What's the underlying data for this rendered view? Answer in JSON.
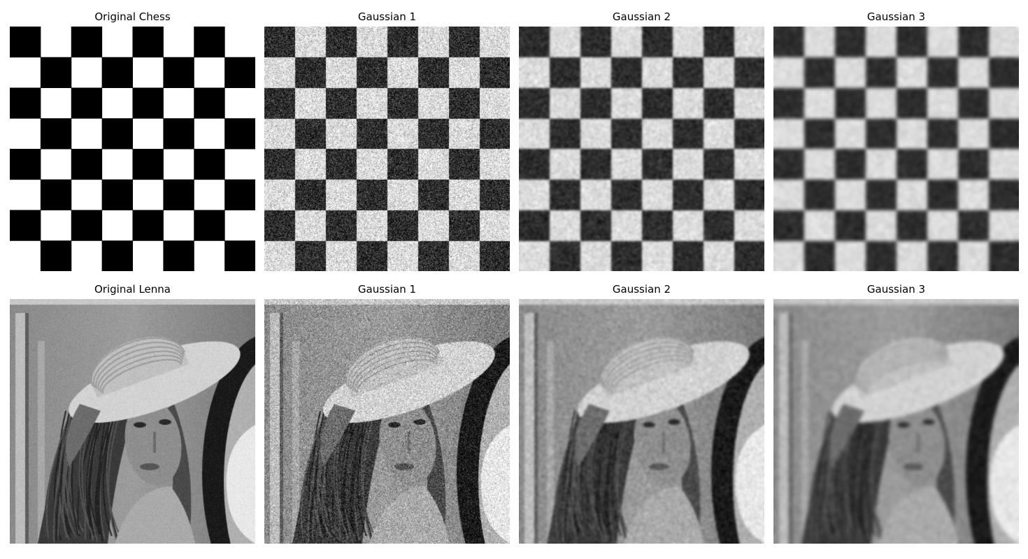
{
  "figure": {
    "rows": [
      {
        "source": "chess",
        "panels": [
          {
            "title": "Original Chess",
            "variant": "original",
            "blur_level": 0,
            "noise_level": 0
          },
          {
            "title": "Gaussian 1",
            "variant": "gaussian",
            "blur_level": 1,
            "noise_level": 1
          },
          {
            "title": "Gaussian 2",
            "variant": "gaussian",
            "blur_level": 2,
            "noise_level": 1
          },
          {
            "title": "Gaussian 3",
            "variant": "gaussian",
            "blur_level": 3,
            "noise_level": 1
          }
        ]
      },
      {
        "source": "portrait",
        "panels": [
          {
            "title": "Original Lenna",
            "variant": "original",
            "blur_level": 0,
            "noise_level": 0
          },
          {
            "title": "Gaussian 1",
            "variant": "gaussian",
            "blur_level": 1,
            "noise_level": 1
          },
          {
            "title": "Gaussian 2",
            "variant": "gaussian",
            "blur_level": 2,
            "noise_level": 1
          },
          {
            "title": "Gaussian 3",
            "variant": "gaussian",
            "blur_level": 3,
            "noise_level": 1
          }
        ]
      }
    ],
    "checkerboard": {
      "squares_per_side": 8,
      "top_left_color": "#000000",
      "dark_color": "#000000",
      "light_color": "#ffffff"
    },
    "colormap": "grayscale"
  }
}
